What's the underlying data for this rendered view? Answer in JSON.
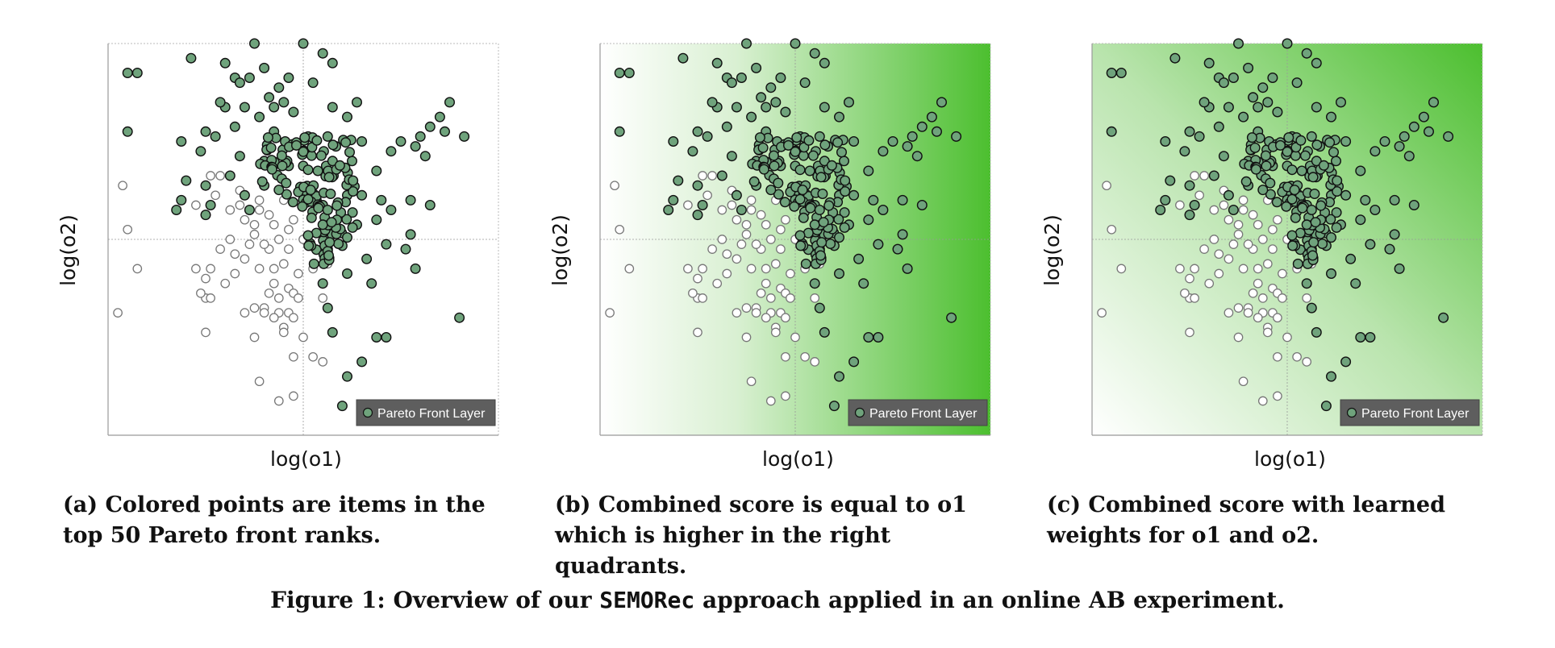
{
  "figure_caption": {
    "prefix": "Figure 1: Overview of our ",
    "method": "SEMORec",
    "suffix": " approach applied in an online AB experiment."
  },
  "colors": {
    "pareto_fill": "#6fa37c",
    "pareto_stroke": "#111111",
    "other_stroke": "#777777",
    "gradient_green": "#4cbf2f",
    "legend_bg": "#5e5e5e"
  },
  "chart_data": [
    {
      "type": "scatter",
      "xlabel": "log(o1)",
      "ylabel": "log(o2)",
      "xlim": [
        -4,
        4
      ],
      "ylim": [
        -4,
        4
      ],
      "grid": "center crosshair",
      "legend": {
        "placement": "bottom-right",
        "label": "Pareto Front Layer"
      },
      "background": "none",
      "caption": "(a) Colored points are items in the top 50 Pareto front ranks."
    },
    {
      "type": "scatter",
      "xlabel": "log(o1)",
      "ylabel": "log(o2)",
      "xlim": [
        -4,
        4
      ],
      "ylim": [
        -4,
        4
      ],
      "grid": "center crosshair",
      "legend": {
        "placement": "bottom-right",
        "label": "Pareto Front Layer"
      },
      "background": "horizontal",
      "caption": "(b) Combined score is equal to o1 which is higher in the right quadrants."
    },
    {
      "type": "scatter",
      "xlabel": "log(o1)",
      "ylabel": "log(o2)",
      "xlim": [
        -4,
        4
      ],
      "ylim": [
        -4,
        4
      ],
      "grid": "center crosshair",
      "legend": {
        "placement": "bottom-right",
        "label": "Pareto Front Layer"
      },
      "background": "diagonal",
      "caption": "(c) Combined score with learned weights for o1 and o2."
    }
  ]
}
